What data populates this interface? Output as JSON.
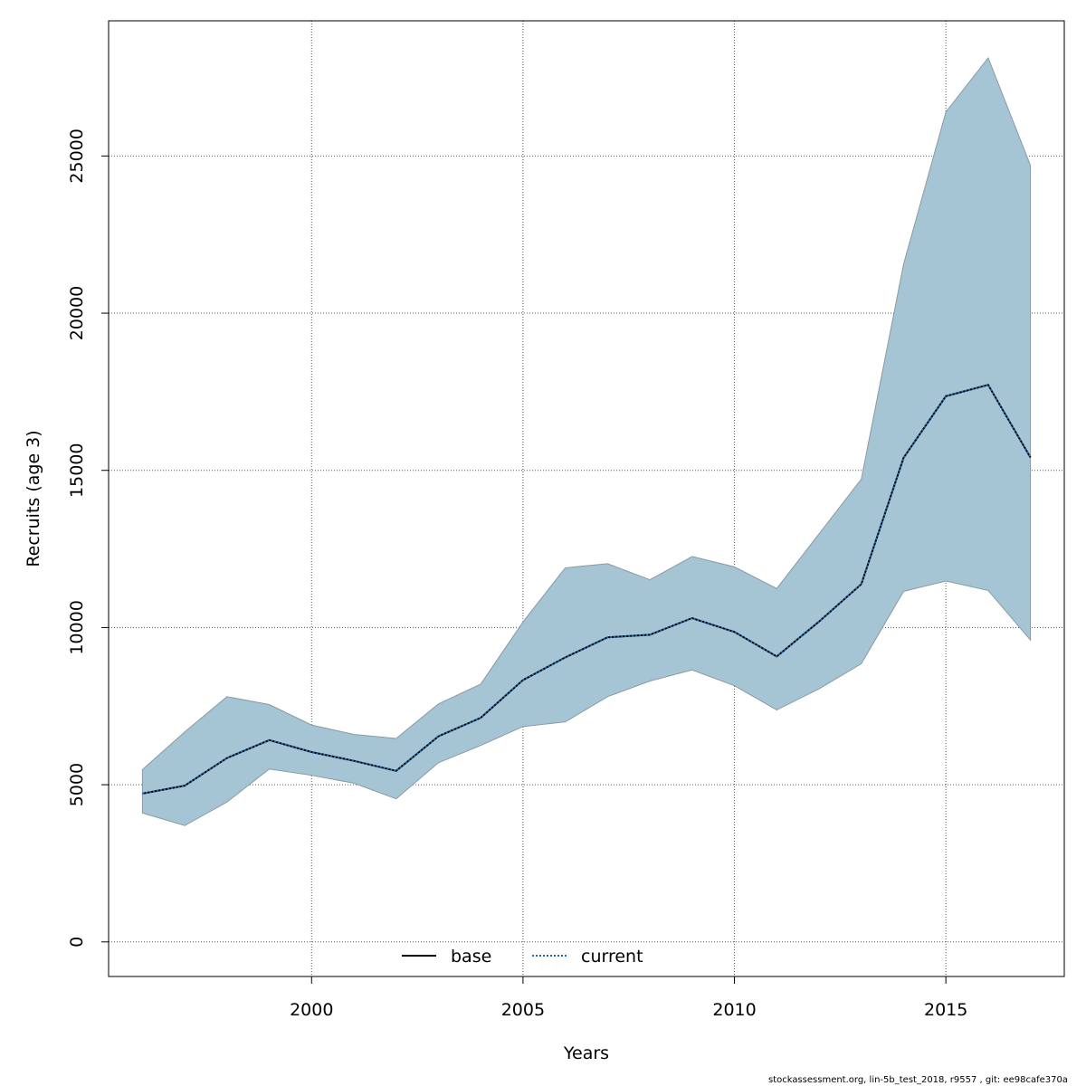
{
  "chart_data": {
    "type": "area",
    "xlabel": "Years",
    "ylabel": "Recruits (age 3)",
    "xlim": [
      1995.2,
      2017.8
    ],
    "ylim": [
      -1100,
      29300
    ],
    "x_ticks": [
      2000,
      2005,
      2010,
      2015
    ],
    "y_ticks": [
      0,
      5000,
      10000,
      15000,
      20000,
      25000
    ],
    "x_tick_labels": [
      "2000",
      "2005",
      "2010",
      "2015"
    ],
    "y_tick_labels": [
      "0",
      "5000",
      "10000",
      "15000",
      "20000",
      "25000"
    ],
    "grid": true,
    "legend_position": "bottom-center",
    "band_color": "#a5c4d4",
    "x": [
      1996,
      1997,
      1998,
      1999,
      2000,
      2001,
      2002,
      2003,
      2004,
      2005,
      2006,
      2007,
      2008,
      2009,
      2010,
      2011,
      2012,
      2013,
      2014,
      2015,
      2016,
      2017
    ],
    "band": {
      "lower": [
        4100,
        3700,
        4450,
        5500,
        5300,
        5050,
        4550,
        5700,
        6250,
        6850,
        7000,
        7800,
        8300,
        8650,
        8150,
        7380,
        8050,
        8850,
        11150,
        11480,
        11180,
        9600
      ],
      "upper": [
        5480,
        6680,
        7800,
        7550,
        6900,
        6600,
        6470,
        7570,
        8200,
        10180,
        11900,
        12030,
        11520,
        12260,
        11930,
        11240,
        12980,
        14720,
        21560,
        26400,
        28120,
        24700
      ]
    },
    "series": [
      {
        "name": "base",
        "color": "#000000",
        "style": "solid",
        "values": [
          4720,
          4970,
          5850,
          6420,
          6040,
          5760,
          5440,
          6540,
          7130,
          8330,
          9050,
          9690,
          9770,
          10300,
          9860,
          9080,
          10190,
          11380,
          15400,
          17360,
          17720,
          15410
        ]
      },
      {
        "name": "current",
        "color": "#1f6db0",
        "style": "dotted",
        "values": [
          4720,
          4970,
          5850,
          6420,
          6040,
          5760,
          5440,
          6540,
          7130,
          8330,
          9050,
          9690,
          9770,
          10300,
          9860,
          9080,
          10190,
          11380,
          15400,
          17360,
          17720,
          15410
        ]
      }
    ]
  },
  "footer": "stockassessment.org, lin-5b_test_2018, r9557 , git: ee98cafe370a"
}
